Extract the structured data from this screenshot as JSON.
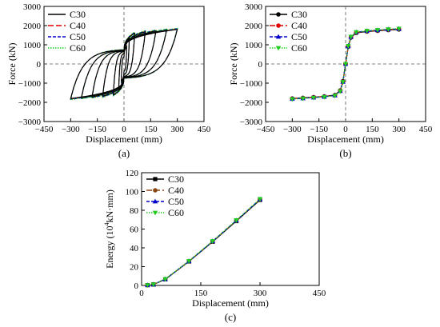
{
  "chart_data": [
    {
      "type": "line",
      "panel": "a",
      "caption": "(a)",
      "xlabel": "Displacement (mm)",
      "ylabel": "Force (kN)",
      "xlim": [
        -450,
        450
      ],
      "ylim": [
        -3000,
        3000
      ],
      "xticks": [
        -450,
        -300,
        -150,
        0,
        150,
        300,
        450
      ],
      "yticks": [
        -3000,
        -2000,
        -1000,
        0,
        1000,
        2000,
        3000
      ],
      "zero_lines_dashed": true,
      "legend_position": "top-left",
      "hysteresis_amplitudes": [
        15,
        30,
        60,
        120,
        180,
        240,
        300
      ],
      "peak_force": [
        {
          "d": 15,
          "f": 900
        },
        {
          "d": 30,
          "f": 1350
        },
        {
          "d": 60,
          "f": 1600
        },
        {
          "d": 120,
          "f": 1680
        },
        {
          "d": 180,
          "f": 1720
        },
        {
          "d": 240,
          "f": 1760
        },
        {
          "d": 300,
          "f": 1800
        }
      ],
      "series": [
        {
          "name": "C30",
          "color": "#000000",
          "dash": "solid"
        },
        {
          "name": "C40",
          "color": "#e00000",
          "dash": "long-dash"
        },
        {
          "name": "C50",
          "color": "#0000cc",
          "dash": "dash"
        },
        {
          "name": "C60",
          "color": "#22cc22",
          "dash": "dot"
        }
      ]
    },
    {
      "type": "line",
      "panel": "b",
      "caption": "(b)",
      "xlabel": "Displacement (mm)",
      "ylabel": "Force (kN)",
      "xlim": [
        -450,
        450
      ],
      "ylim": [
        -3000,
        3000
      ],
      "xticks": [
        -450,
        -300,
        -150,
        0,
        150,
        300,
        450
      ],
      "yticks": [
        -3000,
        -2000,
        -1000,
        0,
        1000,
        2000,
        3000
      ],
      "zero_lines_dashed": true,
      "legend_position": "top-left",
      "x": [
        -300,
        -240,
        -180,
        -120,
        -60,
        -30,
        -15,
        0,
        15,
        30,
        60,
        120,
        180,
        240,
        300
      ],
      "series": [
        {
          "name": "C30",
          "color": "#000000",
          "dash": "solid",
          "marker": "circle",
          "values": [
            -1800,
            -1770,
            -1730,
            -1690,
            -1620,
            -1380,
            -900,
            0,
            900,
            1380,
            1620,
            1690,
            1730,
            1770,
            1800
          ]
        },
        {
          "name": "C40",
          "color": "#e00000",
          "dash": "long-dash",
          "marker": "circle",
          "values": [
            -1810,
            -1780,
            -1740,
            -1700,
            -1630,
            -1400,
            -920,
            0,
            920,
            1400,
            1640,
            1710,
            1750,
            1790,
            1820
          ]
        },
        {
          "name": "C50",
          "color": "#0000cc",
          "dash": "dash",
          "marker": "triangle",
          "values": [
            -1820,
            -1790,
            -1750,
            -1710,
            -1640,
            -1410,
            -930,
            0,
            930,
            1410,
            1650,
            1720,
            1760,
            1800,
            1830
          ]
        },
        {
          "name": "C60",
          "color": "#22cc22",
          "dash": "dot",
          "marker": "triangle-down",
          "values": [
            -1830,
            -1800,
            -1760,
            -1720,
            -1650,
            -1420,
            -940,
            0,
            940,
            1420,
            1660,
            1730,
            1770,
            1810,
            1840
          ]
        }
      ]
    },
    {
      "type": "line",
      "panel": "c",
      "caption": "(c)",
      "xlabel": "Displacement (mm)",
      "ylabel_parts": [
        "Energy (10",
        "4",
        "kN·mm)"
      ],
      "xlim": [
        0,
        450
      ],
      "ylim": [
        0,
        120
      ],
      "xticks": [
        0,
        150,
        300,
        450
      ],
      "yticks": [
        0,
        20,
        40,
        60,
        80,
        100,
        120
      ],
      "legend_position": "top-left",
      "x": [
        15,
        30,
        60,
        120,
        180,
        240,
        300
      ],
      "series": [
        {
          "name": "C30",
          "color": "#000000",
          "dash": "solid",
          "marker": "square",
          "values": [
            0.3,
            1.0,
            6.5,
            25.5,
            46.5,
            68.5,
            91.0
          ]
        },
        {
          "name": "C40",
          "color": "#8b4513",
          "dash": "long-dash",
          "marker": "circle",
          "values": [
            0.3,
            1.0,
            6.6,
            25.7,
            46.8,
            68.9,
            91.5
          ]
        },
        {
          "name": "C50",
          "color": "#0000cc",
          "dash": "dash",
          "marker": "triangle",
          "values": [
            0.3,
            1.0,
            6.6,
            25.8,
            47.0,
            69.1,
            91.7
          ]
        },
        {
          "name": "C60",
          "color": "#22cc22",
          "dash": "dot",
          "marker": "triangle-down",
          "values": [
            0.3,
            1.0,
            6.7,
            26.0,
            47.2,
            69.4,
            92.0
          ]
        }
      ]
    }
  ]
}
